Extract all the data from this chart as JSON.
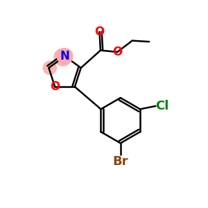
{
  "bg_color": "#ffffff",
  "bond_color": "#000000",
  "bond_width": 1.8,
  "atom_colors": {
    "O": "#ff0000",
    "N": "#0000ff",
    "Cl": "#008000",
    "Br": "#8B4513",
    "C": "#000000"
  },
  "highlight_color": "#ffaaaa",
  "font_size": 12
}
